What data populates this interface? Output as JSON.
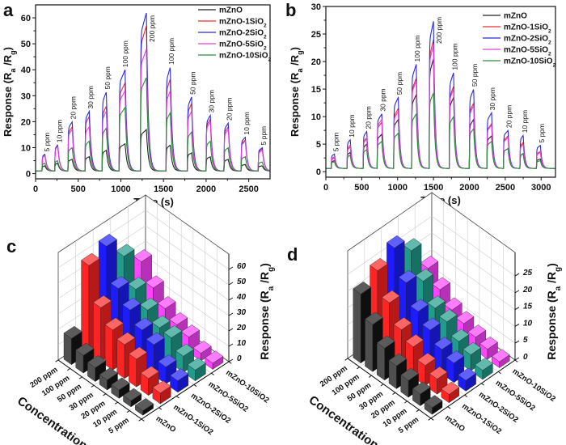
{
  "chart_data": [
    {
      "panel_label": "a",
      "type": "line",
      "xlabel": "Time (s)",
      "ylabel_parts": [
        "Response (R",
        "a",
        " /R",
        "g",
        ")"
      ],
      "xlim": [
        0,
        2750
      ],
      "ylim": [
        -2,
        65
      ],
      "xticks": [
        0,
        500,
        1000,
        1500,
        2000,
        2500
      ],
      "yticks": [
        0,
        10,
        20,
        30,
        40,
        50,
        60
      ],
      "baseline": 1,
      "legend_position": "top-right",
      "series": [
        {
          "name": "mZnO",
          "color": "#222222"
        },
        {
          "name": "mZnO-1SiO2",
          "color": "#e8312a"
        },
        {
          "name": "mZnO-2SiO2",
          "color": "#2a2ad6"
        },
        {
          "name": "mZnO-5SiO2",
          "color": "#e040e0"
        },
        {
          "name": "mZnO-10SiO2",
          "color": "#2e8b3a"
        }
      ],
      "pulses": [
        {
          "label": "5 ppm",
          "start": 75,
          "end": 110,
          "peaks": [
            3,
            7,
            7.5,
            7,
            4
          ]
        },
        {
          "label": "10 ppm",
          "start": 225,
          "end": 260,
          "peaks": [
            4,
            11,
            11,
            10.5,
            5
          ]
        },
        {
          "label": "20 ppm",
          "start": 380,
          "end": 430,
          "peaks": [
            5.5,
            18,
            20,
            17,
            10
          ]
        },
        {
          "label": "30 ppm",
          "start": 580,
          "end": 630,
          "peaks": [
            6.5,
            22,
            24,
            18,
            12.5
          ]
        },
        {
          "label": "50 ppm",
          "start": 780,
          "end": 830,
          "peaks": [
            9,
            26,
            31.5,
            24,
            17.5
          ]
        },
        {
          "label": "100 ppm",
          "start": 980,
          "end": 1050,
          "peaks": [
            11.5,
            35,
            40,
            32,
            25.5
          ]
        },
        {
          "label": "200 ppm",
          "start": 1230,
          "end": 1300,
          "peaks": [
            17,
            57,
            62,
            48,
            37
          ]
        },
        {
          "label": "100 ppm",
          "start": 1530,
          "end": 1580,
          "peaks": [
            11,
            36.5,
            41,
            32,
            23.5
          ]
        },
        {
          "label": "50 ppm",
          "start": 1780,
          "end": 1830,
          "peaks": [
            8,
            27,
            29.5,
            24,
            16
          ]
        },
        {
          "label": "30 ppm",
          "start": 2000,
          "end": 2050,
          "peaks": [
            6.5,
            21,
            22.5,
            20,
            12.5
          ]
        },
        {
          "label": "20 ppm",
          "start": 2210,
          "end": 2260,
          "peaks": [
            5.5,
            18,
            19.5,
            17,
            10
          ]
        },
        {
          "label": "10 ppm",
          "start": 2410,
          "end": 2460,
          "peaks": [
            3.5,
            13,
            14,
            12.5,
            6.5
          ]
        },
        {
          "label": "5 ppm",
          "start": 2610,
          "end": 2660,
          "peaks": [
            3,
            9.5,
            10,
            9,
            4.5
          ]
        }
      ]
    },
    {
      "panel_label": "b",
      "type": "line",
      "xlabel": "Time (s)",
      "ylabel_parts": [
        "Response (R",
        "a",
        " /R",
        "g",
        ")"
      ],
      "xlim": [
        0,
        3200
      ],
      "ylim": [
        -1,
        30
      ],
      "xticks": [
        0,
        500,
        1000,
        1500,
        2000,
        2500,
        3000
      ],
      "yticks": [
        0,
        5,
        10,
        15,
        20,
        25,
        30
      ],
      "baseline": 0.6,
      "legend_position": "top-right",
      "series": [
        {
          "name": "mZnO",
          "color": "#222222"
        },
        {
          "name": "mZnO-1SiO2",
          "color": "#e8312a"
        },
        {
          "name": "mZnO-2SiO2",
          "color": "#2a2ad6"
        },
        {
          "name": "mZnO-5SiO2",
          "color": "#e040e0"
        },
        {
          "name": "mZnO-10SiO2",
          "color": "#2e8b3a"
        }
      ],
      "pulses": [
        {
          "label": "5 ppm",
          "start": 75,
          "end": 120,
          "peaks": [
            2,
            2.5,
            3.2,
            2.7,
            1.8
          ]
        },
        {
          "label": "10 ppm",
          "start": 295,
          "end": 340,
          "peaks": [
            3.5,
            4.5,
            5.8,
            4.8,
            3
          ]
        },
        {
          "label": "20 ppm",
          "start": 520,
          "end": 570,
          "peaks": [
            5,
            6,
            7.3,
            6.2,
            4
          ]
        },
        {
          "label": "30 ppm",
          "start": 715,
          "end": 780,
          "peaks": [
            6.8,
            9,
            10.5,
            9.5,
            5.5
          ]
        },
        {
          "label": "50 ppm",
          "start": 945,
          "end": 1010,
          "peaks": [
            9.5,
            11.5,
            13.5,
            11,
            7
          ]
        },
        {
          "label": "100 ppm",
          "start": 1195,
          "end": 1260,
          "peaks": [
            14,
            17,
            19.5,
            16.5,
            10.5
          ]
        },
        {
          "label": "200 ppm",
          "start": 1440,
          "end": 1500,
          "peaks": [
            20.5,
            24,
            27.3,
            23,
            14.3
          ]
        },
        {
          "label": "100 ppm",
          "start": 1720,
          "end": 1780,
          "peaks": [
            13.5,
            15.5,
            18,
            15,
            10
          ]
        },
        {
          "label": "50 ppm",
          "start": 2000,
          "end": 2060,
          "peaks": [
            9.5,
            12.5,
            15,
            12,
            7.8
          ]
        },
        {
          "label": "30 ppm",
          "start": 2245,
          "end": 2310,
          "peaks": [
            6.5,
            8.7,
            10.7,
            8.5,
            5.5
          ]
        },
        {
          "label": "20 ppm",
          "start": 2475,
          "end": 2540,
          "peaks": [
            4.2,
            6.5,
            7.5,
            6.2,
            4.2
          ]
        },
        {
          "label": "10 ppm",
          "start": 2705,
          "end": 2750,
          "peaks": [
            3.3,
            5.3,
            6.6,
            5,
            3.3
          ]
        },
        {
          "label": "5 ppm",
          "start": 2935,
          "end": 2990,
          "peaks": [
            2.3,
            3.5,
            4.8,
            3.7,
            2
          ]
        }
      ]
    },
    {
      "panel_label": "c",
      "type": "bar3d",
      "xlabel": "Concentration",
      "zlabel_parts": [
        "Response (R",
        "a",
        " /R",
        "g",
        ")"
      ],
      "categories": [
        "5 ppm",
        "10 ppm",
        "20 ppm",
        "30 ppm",
        "50 ppm",
        "100 ppm",
        "200 ppm"
      ],
      "series_labels": [
        "mZnO",
        "mZnO-1SiO2",
        "mZnO-2SiO2",
        "mZnO-5SiO2",
        "mZnO-10SiO2"
      ],
      "colors": [
        "#151515",
        "#ff2424",
        "#1c1cff",
        "#1f9c8c",
        "#ff44ff"
      ],
      "zlim": [
        0,
        70
      ],
      "zticks": [
        0,
        10,
        20,
        30,
        40,
        50,
        60
      ],
      "values": [
        [
          3,
          4,
          5.5,
          6.5,
          9,
          11.5,
          17
        ],
        [
          7,
          11,
          18,
          22,
          26,
          35,
          57
        ],
        [
          7.5,
          11,
          20,
          24,
          31.5,
          40,
          62
        ],
        [
          7,
          10.5,
          17,
          18,
          24,
          32,
          48
        ],
        [
          4,
          5,
          10,
          12.5,
          17.5,
          25.5,
          37
        ]
      ]
    },
    {
      "panel_label": "d",
      "type": "bar3d",
      "xlabel": "Concentration",
      "zlabel_parts": [
        "Response (R",
        "a",
        " /R",
        "g",
        ")"
      ],
      "categories": [
        "5 ppm",
        "10 ppm",
        "20 ppm",
        "30 ppm",
        "50 ppm",
        "100 ppm",
        "200 ppm"
      ],
      "series_labels": [
        "mZnO",
        "mZnO-1SiO2",
        "mZnO-2SiO2",
        "mZnO-5SiO2",
        "mZnO-10SiO2"
      ],
      "colors": [
        "#151515",
        "#ff2424",
        "#1c1cff",
        "#1f9c8c",
        "#ff44ff"
      ],
      "zlim": [
        0,
        32
      ],
      "zticks": [
        0,
        5,
        10,
        15,
        20,
        25
      ],
      "values": [
        [
          2,
          3.5,
          5,
          6.8,
          9.5,
          14,
          20.5
        ],
        [
          2.5,
          4.5,
          6,
          9,
          11.5,
          17,
          24
        ],
        [
          3.2,
          5.8,
          7.3,
          10.5,
          13.5,
          19.5,
          27.3
        ],
        [
          2.7,
          4.8,
          6.2,
          9.5,
          11,
          16.5,
          23
        ],
        [
          1.8,
          3,
          4,
          5.5,
          7,
          10.5,
          14.3
        ]
      ]
    }
  ]
}
